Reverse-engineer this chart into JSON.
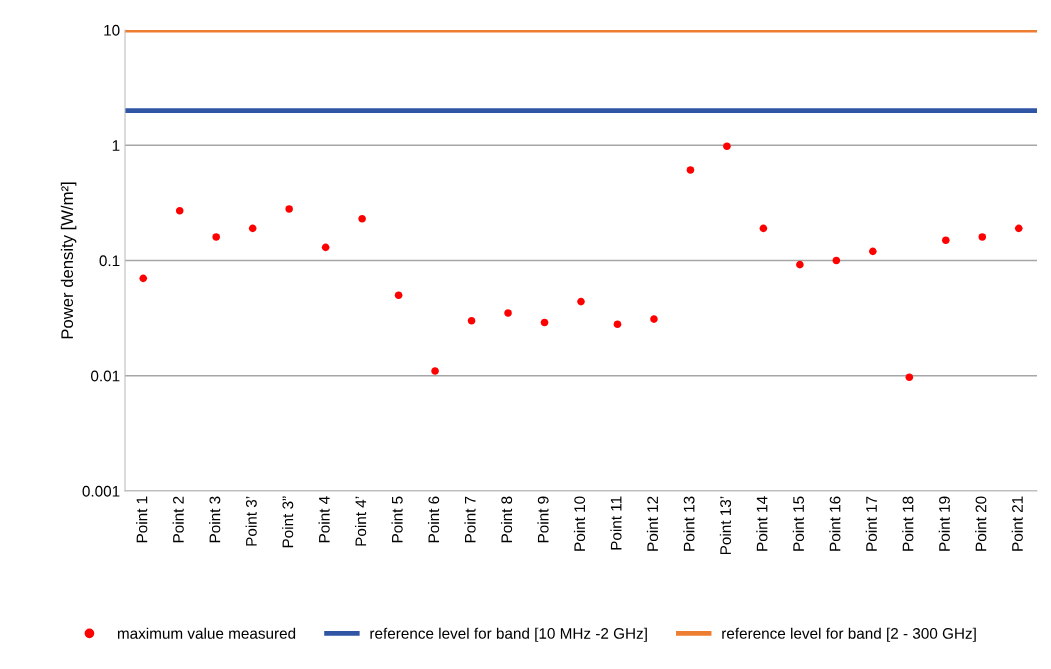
{
  "chart_data": {
    "type": "scatter",
    "ylabel": "Power density [W/m²]",
    "categories": [
      "Point 1",
      "Point 2",
      "Point 3",
      "Point 3’",
      "Point 3”",
      "Point 4",
      "Point 4’",
      "Point 5",
      "Point 6",
      "Point 7",
      "Point 8",
      "Point 9",
      "Point 10",
      "Point 11",
      "Point 12",
      "Point 13",
      "Point 13’",
      "Point 14",
      "Point 15",
      "Point 16",
      "Point 17",
      "Point 18",
      "Point 19",
      "Point 20",
      "Point 21"
    ],
    "series": [
      {
        "name": "maximum value measured",
        "color": "#ff0000",
        "values": [
          0.07,
          0.27,
          0.16,
          0.19,
          0.28,
          0.13,
          0.23,
          0.05,
          0.011,
          0.03,
          0.035,
          0.029,
          0.044,
          0.028,
          0.031,
          0.61,
          0.98,
          0.19,
          0.092,
          0.1,
          0.12,
          0.0097,
          0.15,
          0.16,
          0.19
        ]
      }
    ],
    "ref_lines": [
      {
        "axis": "y",
        "value": 2,
        "label": "reference level for band [10 MHz -2 GHz]",
        "color": "#2f55a4"
      },
      {
        "axis": "y",
        "value": 10,
        "label": "reference level for band [2 - 300 GHz]",
        "color": "#ed7d31"
      }
    ],
    "log": "y",
    "ylim": [
      0.001,
      10
    ],
    "yticks": [
      0.001,
      0.01,
      0.1,
      1,
      10
    ],
    "grid": "y",
    "legend": "bottom",
    "marker": "circle"
  }
}
